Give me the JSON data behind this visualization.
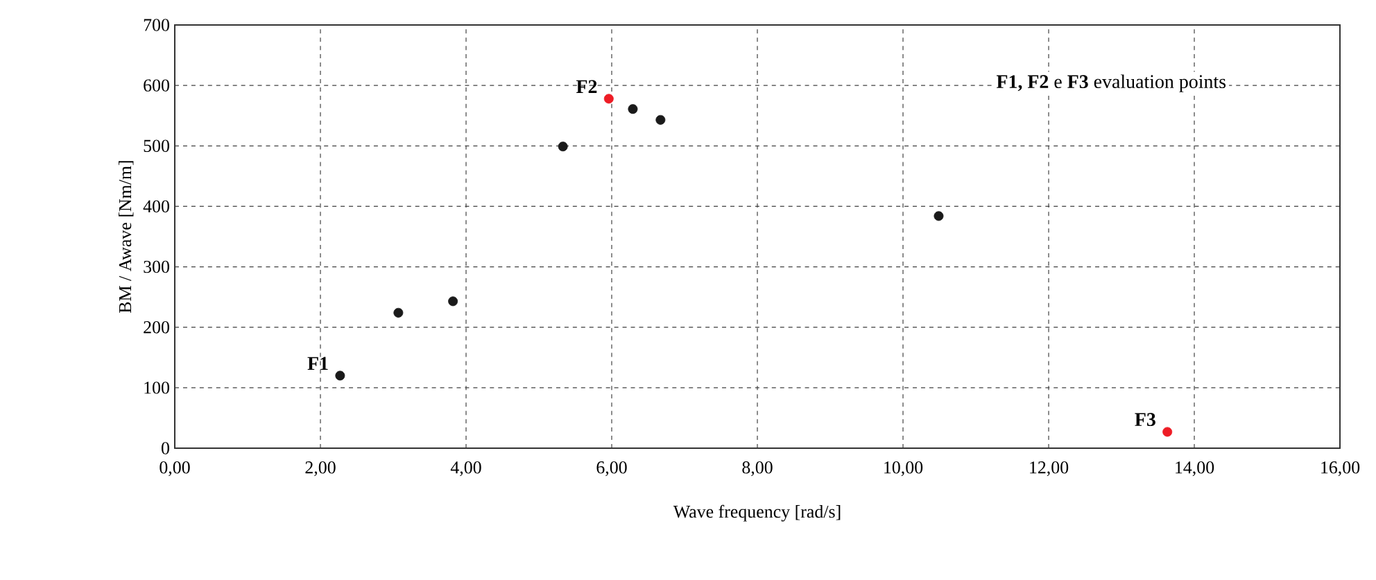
{
  "chart_data": {
    "type": "scatter",
    "xlabel": "Wave frequency [rad/s]",
    "ylabel": "BM / Awave  [Nm/m]",
    "series": [
      {
        "color": "#1a1a1a",
        "x": [
          2.27,
          3.07,
          3.82,
          5.33,
          6.29,
          6.67,
          10.49
        ],
        "values": [
          120,
          224,
          243,
          499,
          561,
          543,
          384
        ]
      },
      {
        "color": "#ee1c25",
        "x": [
          5.96,
          13.63
        ],
        "values": [
          578,
          27
        ]
      }
    ],
    "xlim": [
      0,
      16
    ],
    "ylim": [
      0,
      700
    ],
    "xticks": [
      {
        "value": 0,
        "label": "0,00"
      },
      {
        "value": 2,
        "label": "2,00"
      },
      {
        "value": 4,
        "label": "4,00"
      },
      {
        "value": 6,
        "label": "6,00"
      },
      {
        "value": 8,
        "label": "8,00"
      },
      {
        "value": 10,
        "label": "10,00"
      },
      {
        "value": 12,
        "label": "12,00"
      },
      {
        "value": 14,
        "label": "14,00"
      },
      {
        "value": 16,
        "label": "16,00"
      }
    ],
    "yticks": [
      0,
      100,
      200,
      300,
      400,
      500,
      600,
      700
    ],
    "grid": true,
    "legend": false,
    "marker": "circle",
    "annotations": [
      {
        "text": "F1",
        "x": 2.27,
        "y": 120
      },
      {
        "text": "F2",
        "x": 5.96,
        "y": 578
      },
      {
        "text": "F3",
        "x": 13.63,
        "y": 27
      },
      "**F1, F2** e **F3** evaluation points"
    ]
  }
}
